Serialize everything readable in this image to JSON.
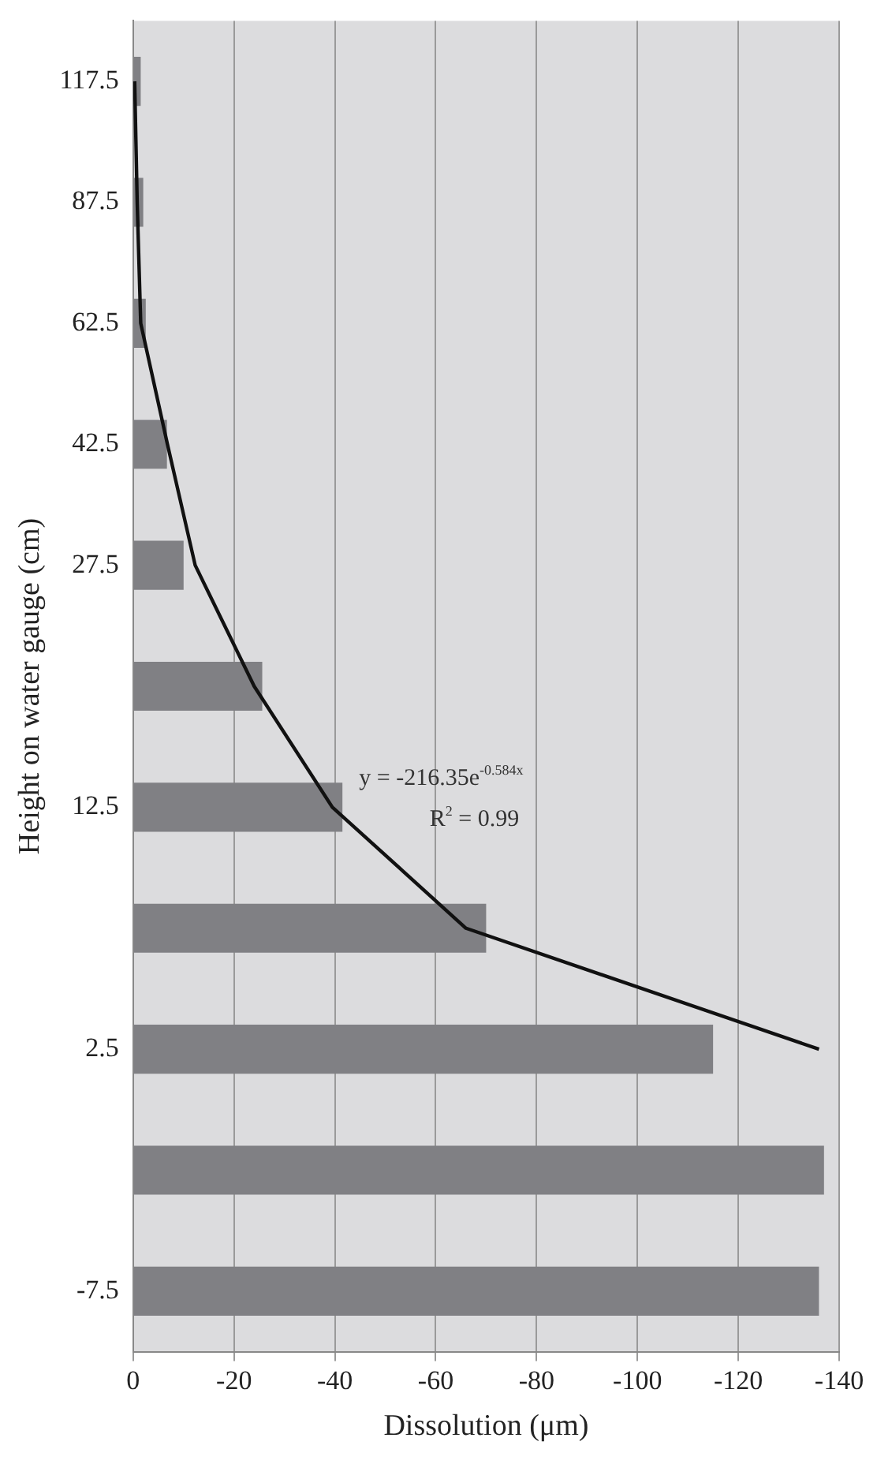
{
  "chart_data": {
    "type": "bar",
    "orientation": "horizontal",
    "xlabel": "Dissolution (μm)",
    "ylabel": "Height on water gauge (cm)",
    "categories": [
      "117.5",
      "87.5",
      "62.5",
      "42.5",
      "27.5",
      null,
      "12.5",
      null,
      "2.5",
      null,
      "-7.5"
    ],
    "xlim": [
      0,
      -140
    ],
    "xticks": [
      0,
      -20,
      -40,
      -60,
      -80,
      -100,
      -120,
      -140
    ],
    "grid": "x",
    "legend": false,
    "marker": "none",
    "series": [
      {
        "color": "#808084",
        "values": [
          -1.5,
          -2,
          -2.5,
          -6.7,
          -10,
          -25.6,
          -41.5,
          -70,
          -115,
          -137,
          -136
        ]
      },
      {
        "type": "line",
        "color": "#111111",
        "values": [
          -0.3,
          -0.8,
          -1.5,
          -6.8,
          -12.3,
          -24,
          -39.5,
          -66,
          -136,
          null,
          null
        ]
      }
    ],
    "annotations": [
      "y = -216.35e$^{-0.584x}$",
      "R$^{2}$ = 0.99"
    ]
  }
}
